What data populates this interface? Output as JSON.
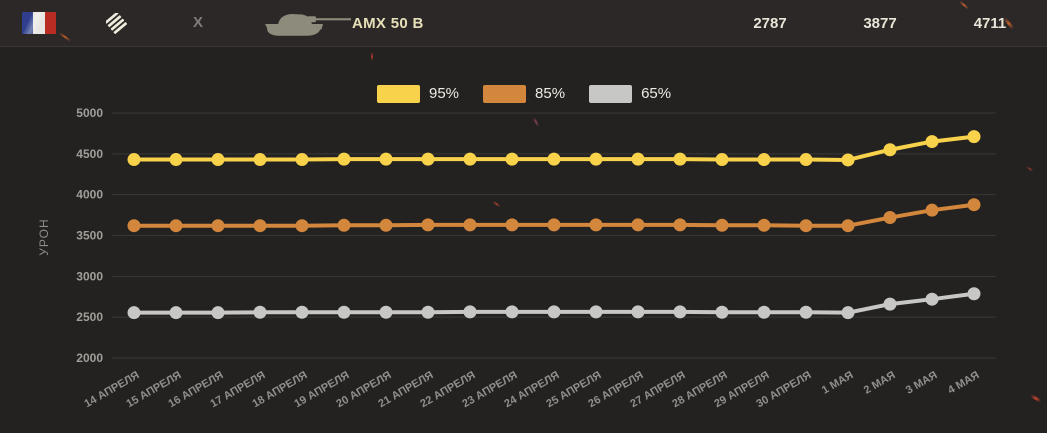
{
  "header": {
    "nation_flag": "france",
    "vehicle_class": "heavy-tank",
    "tier": "X",
    "tank_name": "AMX 50 B",
    "stats": {
      "p65": "2787",
      "p85": "3877",
      "p95": "4711"
    }
  },
  "colors": {
    "background": "#242220",
    "header_background": "#2b2827",
    "gridline": "#474441",
    "series_95": "#F8D24B",
    "series_85": "#D3873C",
    "series_65": "#C7C7C5"
  },
  "chart_data": {
    "type": "line",
    "title": "",
    "xlabel": "",
    "ylabel": "УРОН",
    "ylim": [
      2000,
      5000
    ],
    "ytick_step": 500,
    "yticks": [
      5000,
      4500,
      4000,
      3500,
      3000,
      2500,
      2000
    ],
    "grid": true,
    "legend_position": "top",
    "categories": [
      "14 АПРЕЛЯ",
      "15 АПРЕЛЯ",
      "16 АПРЕЛЯ",
      "17 АПРЕЛЯ",
      "18 АПРЕЛЯ",
      "19 АПРЕЛЯ",
      "20 АПРЕЛЯ",
      "21 АПРЕЛЯ",
      "22 АПРЕЛЯ",
      "23 АПРЕЛЯ",
      "24 АПРЕЛЯ",
      "25 АПРЕЛЯ",
      "26 АПРЕЛЯ",
      "27 АПРЕЛЯ",
      "28 АПРЕЛЯ",
      "29 АПРЕЛЯ",
      "30 АПРЕЛЯ",
      "1 МАЯ",
      "2 МАЯ",
      "3 МАЯ",
      "4 МАЯ"
    ],
    "series": [
      {
        "name": "95%",
        "color": "#F8D24B",
        "values": [
          4430,
          4430,
          4430,
          4430,
          4430,
          4435,
          4435,
          4435,
          4435,
          4435,
          4435,
          4435,
          4435,
          4435,
          4430,
          4430,
          4430,
          4425,
          4550,
          4650,
          4711
        ]
      },
      {
        "name": "85%",
        "color": "#D3873C",
        "values": [
          3620,
          3620,
          3620,
          3620,
          3620,
          3625,
          3625,
          3630,
          3630,
          3630,
          3630,
          3630,
          3630,
          3630,
          3625,
          3625,
          3620,
          3620,
          3720,
          3810,
          3877
        ]
      },
      {
        "name": "65%",
        "color": "#C7C7C5",
        "values": [
          2555,
          2555,
          2555,
          2560,
          2560,
          2560,
          2560,
          2560,
          2565,
          2565,
          2565,
          2565,
          2565,
          2565,
          2560,
          2560,
          2560,
          2555,
          2660,
          2720,
          2787
        ]
      }
    ]
  }
}
